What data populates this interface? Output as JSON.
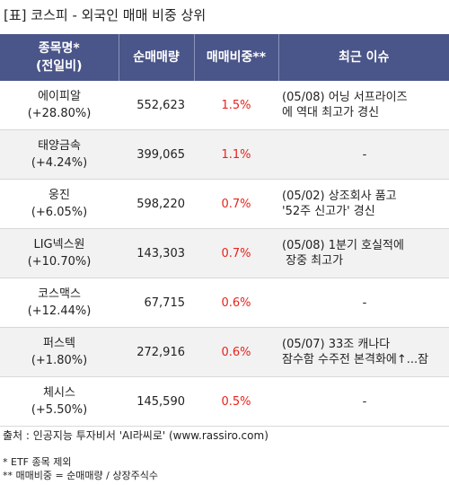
{
  "title": "[표] 코스피 - 외국인 매매 비중 상위",
  "headers": {
    "name_line1": "종목명*",
    "name_line2": "(전일비)",
    "volume": "순매매량",
    "ratio": "매매비중**",
    "issue": "최근 이슈"
  },
  "rows": [
    {
      "name": "에이피알",
      "change": "(+28.80%)",
      "volume": "552,623",
      "ratio": "1.5%",
      "issue": "(05/08) 어닝 서프라이즈\n에 역대 최고가 경신"
    },
    {
      "name": "태양금속",
      "change": "(+4.24%)",
      "volume": "399,065",
      "ratio": "1.1%",
      "issue": "-"
    },
    {
      "name": "웅진",
      "change": "(+6.05%)",
      "volume": "598,220",
      "ratio": "0.7%",
      "issue": "(05/02) 상조회사 품고\n'52주 신고가' 경신"
    },
    {
      "name": "LIG넥스원",
      "change": "(+10.70%)",
      "volume": "143,303",
      "ratio": "0.7%",
      "issue": "(05/08) 1분기 호실적에\n 장중 최고가"
    },
    {
      "name": "코스맥스",
      "change": "(+12.44%)",
      "volume": "67,715",
      "ratio": "0.6%",
      "issue": "-"
    },
    {
      "name": "퍼스텍",
      "change": "(+1.80%)",
      "volume": "272,916",
      "ratio": "0.6%",
      "issue": "(05/07) 33조 캐나다\n잠수함 수주전 본격화에↑...잠"
    },
    {
      "name": "체시스",
      "change": "(+5.50%)",
      "volume": "145,590",
      "ratio": "0.5%",
      "issue": "-"
    }
  ],
  "source": "출처 : 인공지능 투자비서 'AI라씨로' (www.rassiro.com)",
  "notes": {
    "etf": "* ETF 종목 제외",
    "ratio_def": "** 매매비중 = 순매매량 / 상장주식수"
  },
  "colors": {
    "header_bg": "#4a5589",
    "ratio_text": "#e8231d",
    "alt_row_bg": "#f2f2f2"
  }
}
